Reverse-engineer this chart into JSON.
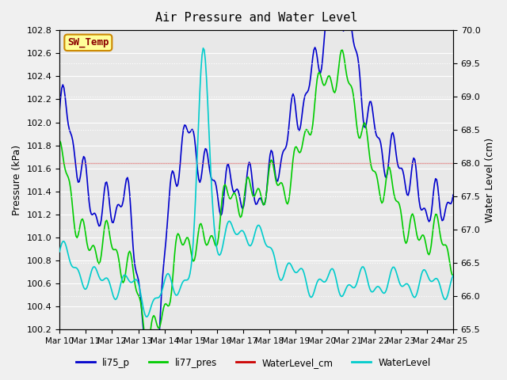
{
  "title": "Air Pressure and Water Level",
  "ylabel_left": "Pressure (kPa)",
  "ylabel_right": "Water Level (cm)",
  "xlabel": "",
  "ylim_left": [
    100.2,
    102.8
  ],
  "ylim_right": [
    65.5,
    70.0
  ],
  "yticks_left": [
    100.2,
    100.4,
    100.6,
    100.8,
    101.0,
    101.2,
    101.4,
    101.6,
    101.8,
    102.0,
    102.2,
    102.4,
    102.6,
    102.8
  ],
  "yticks_right": [
    65.5,
    66.0,
    66.5,
    67.0,
    67.5,
    68.0,
    68.5,
    69.0,
    69.5,
    70.0
  ],
  "xtick_labels": [
    "Mar 10",
    "Mar 11",
    "Mar 12",
    "Mar 13",
    "Mar 14",
    "Mar 15",
    "Mar 16",
    "Mar 17",
    "Mar 18",
    "Mar 19",
    "Mar 20",
    "Mar 21",
    "Mar 22",
    "Mar 23",
    "Mar 24",
    "Mar 25"
  ],
  "color_li75": "#0000cc",
  "color_li77": "#00cc00",
  "color_waterlevel_cm": "#cc0000",
  "color_waterlevel": "#00cccc",
  "bg_color": "#e8e8e8",
  "grid_color": "#ffffff",
  "legend_labels": [
    "li75_p",
    "li77_pres",
    "WaterLevel_cm",
    "WaterLevel"
  ],
  "annotation_text": "SW_Temp",
  "annotation_bg": "#ffff99",
  "annotation_border": "#cc8800"
}
